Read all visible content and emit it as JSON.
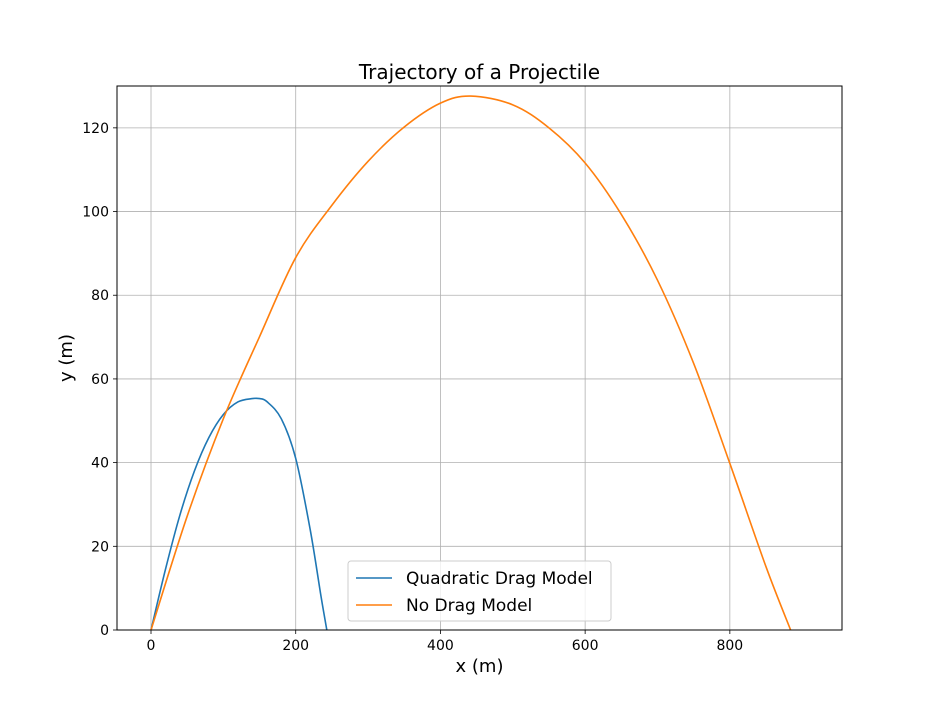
{
  "chart_data": {
    "type": "line",
    "title": "Trajectory of a Projectile",
    "xlabel": "x (m)",
    "ylabel": "y (m)",
    "xlim": [
      -47,
      955
    ],
    "ylim": [
      0,
      130
    ],
    "xticks": [
      0,
      200,
      400,
      600,
      800
    ],
    "yticks": [
      0,
      20,
      40,
      60,
      80,
      100,
      120
    ],
    "grid": true,
    "legend_position": "lower center",
    "series": [
      {
        "name": "Quadratic Drag Model",
        "color": "#1f77b4",
        "x": [
          0,
          20,
          40,
          60,
          80,
          100,
          120,
          140,
          150,
          160,
          180,
          200,
          220,
          235,
          243
        ],
        "y": [
          0,
          14.5,
          27.5,
          38,
          46,
          51.5,
          54.5,
          55.3,
          55.3,
          54.6,
          50.5,
          41,
          24,
          8,
          0
        ]
      },
      {
        "name": "No Drag Model",
        "color": "#ff7f0e",
        "x": [
          0,
          50,
          100,
          150,
          200,
          250,
          300,
          350,
          400,
          442,
          500,
          550,
          600,
          650,
          700,
          750,
          800,
          850,
          884
        ],
        "y": [
          0,
          27.2,
          50.5,
          70.1,
          89.0,
          101.5,
          112.0,
          120.2,
          125.9,
          127.6,
          125.5,
          120.0,
          111.6,
          99.3,
          83.6,
          63.7,
          39.8,
          15.1,
          0
        ]
      }
    ]
  }
}
